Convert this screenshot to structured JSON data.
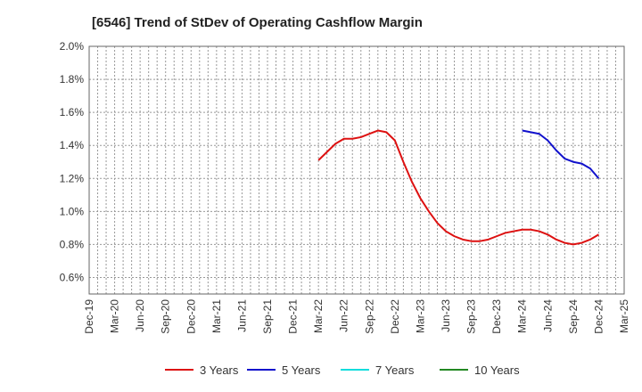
{
  "chart_data": {
    "type": "line",
    "title": "[6546]  Trend of StDev of Operating Cashflow Margin",
    "xlabel": "",
    "ylabel": "",
    "ylim": [
      0.5,
      2.0
    ],
    "yticks": [
      0.6,
      0.8,
      1.0,
      1.2,
      1.4,
      1.6,
      1.8,
      2.0
    ],
    "ytick_labels": [
      "0.6%",
      "0.8%",
      "1.0%",
      "1.2%",
      "1.4%",
      "1.6%",
      "1.8%",
      "2.0%"
    ],
    "x_tick_labels": [
      "Dec-19",
      "Mar-20",
      "Jun-20",
      "Sep-20",
      "Dec-20",
      "Mar-21",
      "Jun-21",
      "Sep-21",
      "Dec-21",
      "Mar-22",
      "Jun-22",
      "Sep-22",
      "Dec-22",
      "Mar-23",
      "Jun-23",
      "Sep-23",
      "Dec-23",
      "Mar-24",
      "Jun-24",
      "Sep-24",
      "Dec-24",
      "Mar-25"
    ],
    "grid": true,
    "legend_position": "bottom",
    "series": [
      {
        "name": "3 Years",
        "color": "#dd1111",
        "x": [
          "Mar-22",
          "Apr-22",
          "May-22",
          "Jun-22",
          "Jul-22",
          "Aug-22",
          "Sep-22",
          "Oct-22",
          "Nov-22",
          "Dec-22",
          "Jan-23",
          "Feb-23",
          "Mar-23",
          "Apr-23",
          "May-23",
          "Jun-23",
          "Jul-23",
          "Aug-23",
          "Sep-23",
          "Oct-23",
          "Nov-23",
          "Dec-23",
          "Jan-24",
          "Feb-24",
          "Mar-24",
          "Apr-24",
          "May-24",
          "Jun-24",
          "Jul-24",
          "Aug-24",
          "Sep-24",
          "Oct-24",
          "Nov-24",
          "Dec-24"
        ],
        "values": [
          1.31,
          1.36,
          1.41,
          1.44,
          1.44,
          1.45,
          1.47,
          1.49,
          1.48,
          1.43,
          1.3,
          1.18,
          1.08,
          1.0,
          0.93,
          0.88,
          0.85,
          0.83,
          0.82,
          0.82,
          0.83,
          0.85,
          0.87,
          0.88,
          0.89,
          0.89,
          0.88,
          0.86,
          0.83,
          0.81,
          0.8,
          0.81,
          0.83,
          0.86
        ]
      },
      {
        "name": "5 Years",
        "color": "#1111cc",
        "x": [
          "Mar-24",
          "Apr-24",
          "May-24",
          "Jun-24",
          "Jul-24",
          "Aug-24",
          "Sep-24",
          "Oct-24",
          "Nov-24",
          "Dec-24"
        ],
        "values": [
          1.49,
          1.48,
          1.47,
          1.43,
          1.37,
          1.32,
          1.3,
          1.29,
          1.26,
          1.2
        ]
      },
      {
        "name": "7 Years",
        "color": "#11dddd",
        "x": [],
        "values": []
      },
      {
        "name": "10 Years",
        "color": "#228822",
        "x": [],
        "values": []
      }
    ]
  }
}
